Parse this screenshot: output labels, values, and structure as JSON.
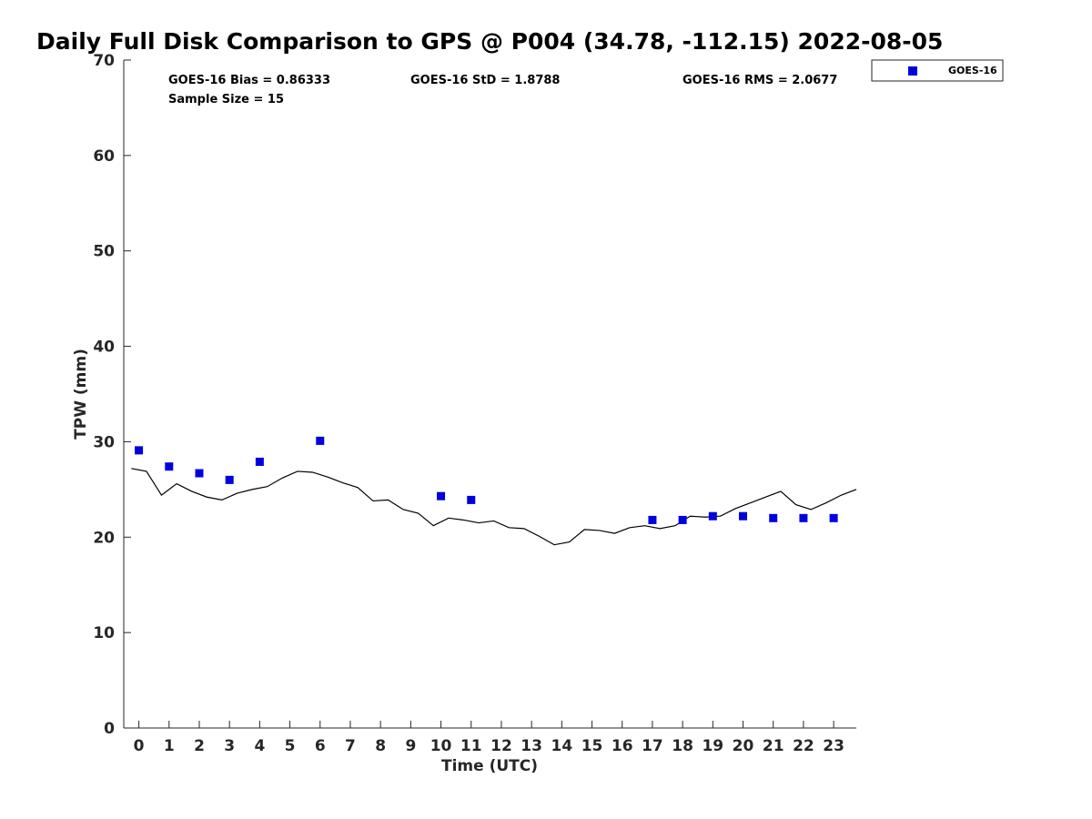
{
  "chart_data": {
    "type": "scatter",
    "title": "Daily Full Disk Comparison to GPS @ P004 (34.78, -112.15) 2022-08-05",
    "xlabel": "Time (UTC)",
    "ylabel": "TPW (mm)",
    "xlim": [
      -0.5,
      23.75
    ],
    "ylim": [
      0,
      70
    ],
    "x_ticks": [
      "0",
      "1",
      "2",
      "3",
      "4",
      "5",
      "6",
      "7",
      "8",
      "9",
      "10",
      "11",
      "12",
      "13",
      "14",
      "15",
      "16",
      "17",
      "18",
      "19",
      "20",
      "21",
      "22",
      "23"
    ],
    "y_ticks": [
      "0",
      "10",
      "20",
      "30",
      "40",
      "50",
      "60",
      "70"
    ],
    "grid": false,
    "legend_position": "top-right",
    "stats": {
      "bias": "GOES-16 Bias = 0.86333",
      "std": "GOES-16 StD = 1.8788",
      "rms": "GOES-16 RMS = 2.0677",
      "sample": "Sample Size = 15"
    },
    "series": [
      {
        "name": "GOES-16",
        "type": "scatter",
        "color": "#0000dd",
        "marker": "square",
        "x": [
          0,
          1,
          2,
          3,
          4,
          6,
          10,
          11,
          17,
          18,
          19,
          20,
          21,
          22,
          23
        ],
        "y": [
          29.1,
          27.4,
          26.7,
          26.0,
          27.9,
          30.1,
          24.3,
          23.9,
          21.8,
          21.8,
          22.2,
          22.2,
          22.0,
          22.0,
          22.0
        ]
      },
      {
        "type": "line",
        "color": "#000000",
        "x": [
          -0.25,
          0.25,
          0.75,
          1.25,
          1.75,
          2.25,
          2.75,
          3.25,
          3.75,
          4.25,
          4.75,
          5.25,
          5.75,
          6.25,
          6.75,
          7.25,
          7.75,
          8.25,
          8.75,
          9.25,
          9.75,
          10.25,
          10.75,
          11.25,
          11.75,
          12.25,
          12.75,
          13.25,
          13.75,
          14.25,
          14.75,
          15.25,
          15.75,
          16.25,
          16.75,
          17.25,
          17.75,
          18.25,
          18.75,
          19.25,
          19.75,
          20.25,
          20.75,
          21.25,
          21.75,
          22.25,
          22.75,
          23.25,
          23.75
        ],
        "y": [
          27.2,
          26.9,
          24.4,
          25.6,
          24.8,
          24.2,
          23.9,
          24.6,
          25.0,
          25.3,
          26.2,
          26.9,
          26.8,
          26.3,
          25.7,
          25.2,
          23.8,
          23.9,
          22.9,
          22.5,
          21.2,
          22.0,
          21.8,
          21.5,
          21.7,
          21.0,
          20.9,
          20.1,
          19.2,
          19.5,
          20.8,
          20.7,
          20.4,
          21.0,
          21.2,
          20.9,
          21.2,
          22.2,
          22.1,
          22.2,
          23.0,
          23.6,
          24.2,
          24.8,
          23.4,
          22.9,
          23.6,
          24.4,
          25.0
        ]
      }
    ]
  }
}
